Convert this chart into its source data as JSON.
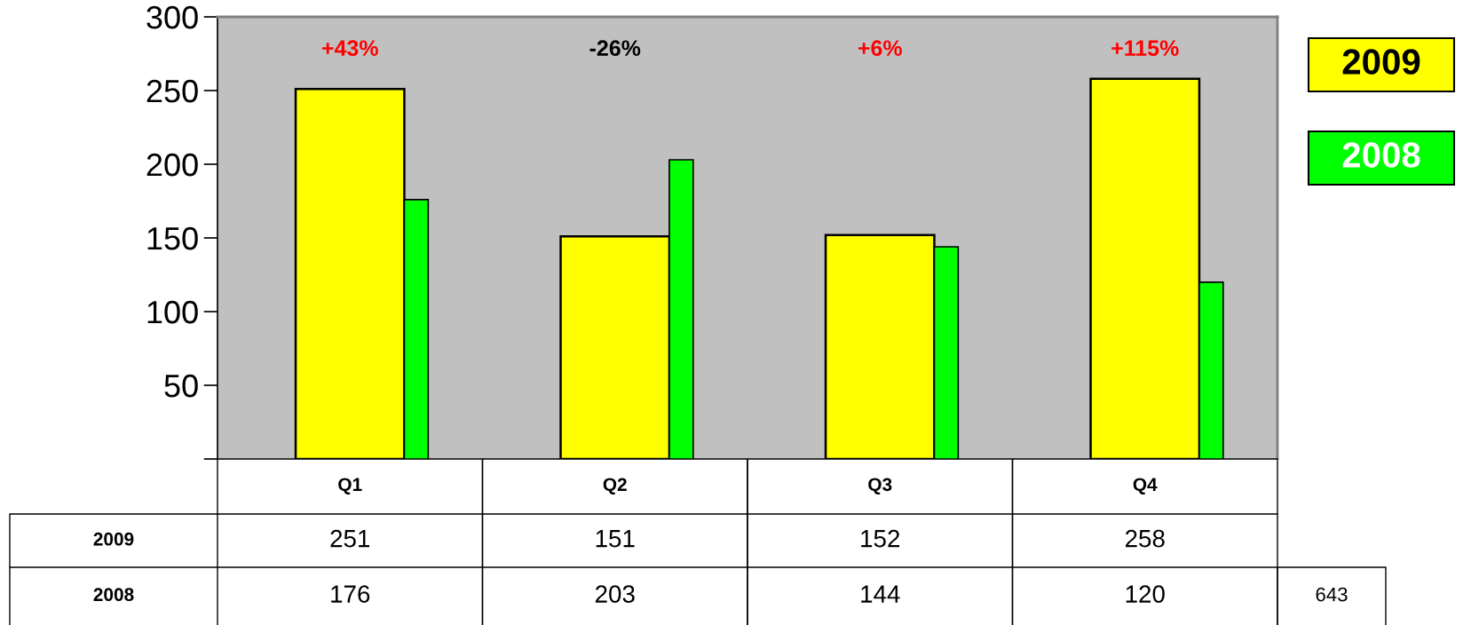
{
  "chart_data": {
    "type": "bar",
    "categories": [
      "Q1",
      "Q2",
      "Q3",
      "Q4"
    ],
    "series": [
      {
        "name": "2009",
        "color": "#ffff00",
        "values": [
          251,
          151,
          152,
          258
        ]
      },
      {
        "name": "2008",
        "color": "#00ff00",
        "values": [
          176,
          203,
          144,
          120
        ]
      }
    ],
    "ylim": [
      0,
      300
    ],
    "yticks": [
      {
        "value": 0,
        "label": null
      },
      50,
      100,
      150,
      200,
      250,
      300
    ],
    "legend": "top right",
    "data_labels": true,
    "annotations": [
      "+43%",
      "-26%",
      "+6%",
      "+115%",
      "643"
    ]
  }
}
